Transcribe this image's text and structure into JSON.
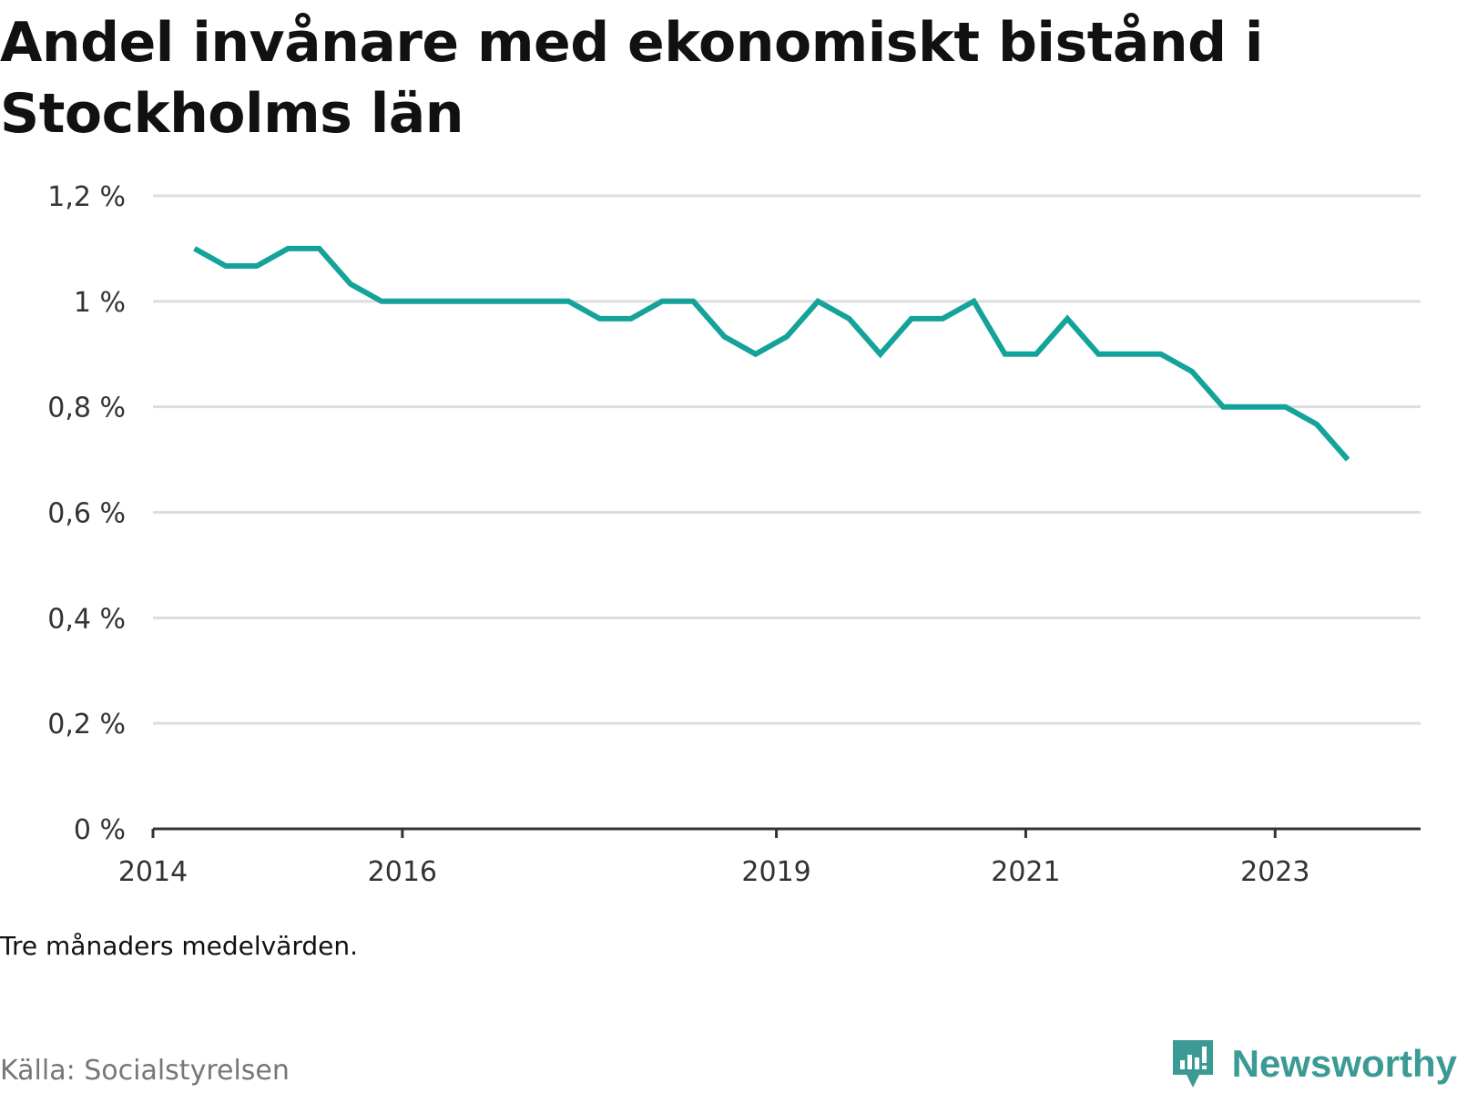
{
  "title": "Andel invånare med ekonomiskt bistånd i Stockholms län",
  "note": "Tre månaders medelvärden.",
  "source": "Källa: Socialstyrelsen",
  "brand": {
    "name": "Newsworthy",
    "icon": "newsworthy-logo-icon"
  },
  "colors": {
    "line": "#14a39a",
    "grid": "#dddddd",
    "axis": "#333333",
    "brand": "#3b9b94"
  },
  "chart_data": {
    "type": "line",
    "title": "Andel invånare med ekonomiskt bistånd i Stockholms län",
    "xlabel": "",
    "ylabel": "",
    "ylim": [
      0,
      1.2
    ],
    "xlim": [
      "2014-01",
      "2024-03"
    ],
    "grid": true,
    "yticks": [
      0,
      0.2,
      0.4,
      0.6,
      0.8,
      1.0,
      1.2
    ],
    "ytick_labels": [
      "0 %",
      "0,2 %",
      "0,4 %",
      "0,6 %",
      "0,8 %",
      "1 %",
      "1,2 %"
    ],
    "xticks": [
      "2014-01",
      "2016-01",
      "2019-01",
      "2021-01",
      "2023-01"
    ],
    "xtick_labels": [
      "2014",
      "2016",
      "2019",
      "2021",
      "2023"
    ],
    "series": [
      {
        "x": [
          "2014-05",
          "2014-08",
          "2014-11",
          "2015-02",
          "2015-05",
          "2015-08",
          "2015-11",
          "2016-02",
          "2016-05",
          "2016-08",
          "2016-11",
          "2017-02",
          "2017-05",
          "2017-08",
          "2017-11",
          "2018-02",
          "2018-05",
          "2018-08",
          "2018-11",
          "2019-02",
          "2019-05",
          "2019-08",
          "2019-11",
          "2020-02",
          "2020-05",
          "2020-08",
          "2020-11",
          "2021-02",
          "2021-05",
          "2021-08",
          "2021-11",
          "2022-02",
          "2022-05",
          "2022-08",
          "2022-11",
          "2023-02",
          "2023-05",
          "2023-08"
        ],
        "values": [
          1.1,
          1.067,
          1.067,
          1.1,
          1.1,
          1.033,
          1.0,
          1.0,
          1.0,
          1.0,
          1.0,
          1.0,
          1.0,
          0.967,
          0.967,
          1.0,
          1.0,
          0.933,
          0.9,
          0.933,
          1.0,
          0.967,
          0.9,
          0.967,
          0.967,
          1.0,
          0.9,
          0.9,
          0.967,
          0.9,
          0.9,
          0.9,
          0.867,
          0.8,
          0.8,
          0.8,
          0.767,
          0.7
        ]
      }
    ]
  }
}
